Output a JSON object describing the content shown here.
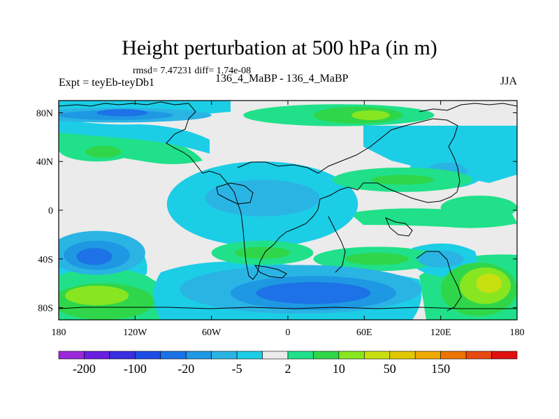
{
  "chart_data": {
    "type": "heatmap",
    "title": "Height perturbation at 500 hPa (in m)",
    "stats": "rmsd= 7.47231 diff= 1.74e-08",
    "left_label": "Expt = teyEb-teyDb1",
    "center_label": "136_4_MaBP - 136_4_MaBP",
    "right_label": "JJA",
    "xlim": [
      -180,
      180
    ],
    "ylim": [
      -90,
      90
    ],
    "x_ticks": [
      {
        "value": -180,
        "label": "180"
      },
      {
        "value": -120,
        "label": "120W"
      },
      {
        "value": -60,
        "label": "60W"
      },
      {
        "value": 0,
        "label": "0"
      },
      {
        "value": 60,
        "label": "60E"
      },
      {
        "value": 120,
        "label": "120E"
      },
      {
        "value": 180,
        "label": "180"
      }
    ],
    "y_ticks": [
      {
        "value": 80,
        "label": "80N"
      },
      {
        "value": 40,
        "label": "40N"
      },
      {
        "value": 0,
        "label": "0"
      },
      {
        "value": -40,
        "label": "40S"
      },
      {
        "value": -80,
        "label": "80S"
      }
    ],
    "colorbar": {
      "colors": [
        "#9a28d8",
        "#6a1ee0",
        "#3a2ee0",
        "#1e4ee6",
        "#1c72e6",
        "#1e98e2",
        "#2ab4e4",
        "#1ccde6",
        "#ebebeb",
        "#20e08a",
        "#30d64a",
        "#88e620",
        "#c8e010",
        "#e2c800",
        "#eeaa00",
        "#ec7400",
        "#e84812",
        "#e01010"
      ],
      "levels": [
        -200,
        -100,
        -50,
        -20,
        -10,
        -5,
        -2,
        2,
        5,
        10,
        20,
        50,
        100,
        150
      ],
      "visible_labels": [
        "-200",
        "-100",
        "-20",
        "-5",
        "2",
        "10",
        "50",
        "150"
      ]
    },
    "regions": [
      {
        "lon": -135,
        "lat": 78,
        "rx": 75,
        "ry": 6,
        "level": 6
      },
      {
        "lon": -135,
        "lat": 78,
        "rx": 45,
        "ry": 4,
        "level": 5
      },
      {
        "lon": -130,
        "lat": 80,
        "rx": 20,
        "ry": 3,
        "level": 4
      },
      {
        "lon": -150,
        "lat": 50,
        "rx": 30,
        "ry": 10,
        "level": 9
      },
      {
        "lon": -145,
        "lat": 48,
        "rx": 14,
        "ry": 5,
        "level": 10
      },
      {
        "lon": 40,
        "lat": 78,
        "rx": 75,
        "ry": 9,
        "level": 9
      },
      {
        "lon": 55,
        "lat": 78,
        "rx": 35,
        "ry": 7,
        "level": 10
      },
      {
        "lon": 65,
        "lat": 78,
        "rx": 15,
        "ry": 4,
        "level": 11
      },
      {
        "lon": -20,
        "lat": 5,
        "rx": 75,
        "ry": 35,
        "level": 7
      },
      {
        "lon": -20,
        "lat": 10,
        "rx": 45,
        "ry": 15,
        "level": 6
      },
      {
        "lon": 125,
        "lat": 32,
        "rx": 30,
        "ry": 14,
        "level": 7
      },
      {
        "lon": 125,
        "lat": 32,
        "rx": 16,
        "ry": 7,
        "level": 6
      },
      {
        "lon": 90,
        "lat": 25,
        "rx": 55,
        "ry": 10,
        "level": 9
      },
      {
        "lon": 90,
        "lat": 25,
        "rx": 25,
        "ry": 4,
        "level": 10
      },
      {
        "lon": 150,
        "lat": 2,
        "rx": 30,
        "ry": 10,
        "level": 9
      },
      {
        "lon": -150,
        "lat": -35,
        "rx": 38,
        "ry": 18,
        "level": 6
      },
      {
        "lon": -150,
        "lat": -37,
        "rx": 26,
        "ry": 12,
        "level": 5
      },
      {
        "lon": -152,
        "lat": -38,
        "rx": 14,
        "ry": 7,
        "level": 4
      },
      {
        "lon": -145,
        "lat": -75,
        "rx": 40,
        "ry": 15,
        "level": 10
      },
      {
        "lon": -150,
        "lat": -70,
        "rx": 25,
        "ry": 8,
        "level": 11
      },
      {
        "lon": -20,
        "lat": -35,
        "rx": 40,
        "ry": 10,
        "level": 9
      },
      {
        "lon": -20,
        "lat": -35,
        "rx": 22,
        "ry": 5,
        "level": 10
      },
      {
        "lon": 70,
        "lat": -40,
        "rx": 50,
        "ry": 10,
        "level": 9
      },
      {
        "lon": 70,
        "lat": -40,
        "rx": 25,
        "ry": 5,
        "level": 10
      },
      {
        "lon": 10,
        "lat": -65,
        "rx": 95,
        "ry": 20,
        "level": 6
      },
      {
        "lon": 20,
        "lat": -68,
        "rx": 65,
        "ry": 14,
        "level": 5
      },
      {
        "lon": 20,
        "lat": -68,
        "rx": 45,
        "ry": 9,
        "level": 4
      },
      {
        "lon": 120,
        "lat": -40,
        "rx": 18,
        "ry": 7,
        "level": 6
      },
      {
        "lon": 150,
        "lat": -65,
        "rx": 30,
        "ry": 22,
        "level": 10
      },
      {
        "lon": 155,
        "lat": -62,
        "rx": 20,
        "ry": 15,
        "level": 11
      },
      {
        "lon": 158,
        "lat": -60,
        "rx": 10,
        "ry": 8,
        "level": 12
      }
    ]
  }
}
